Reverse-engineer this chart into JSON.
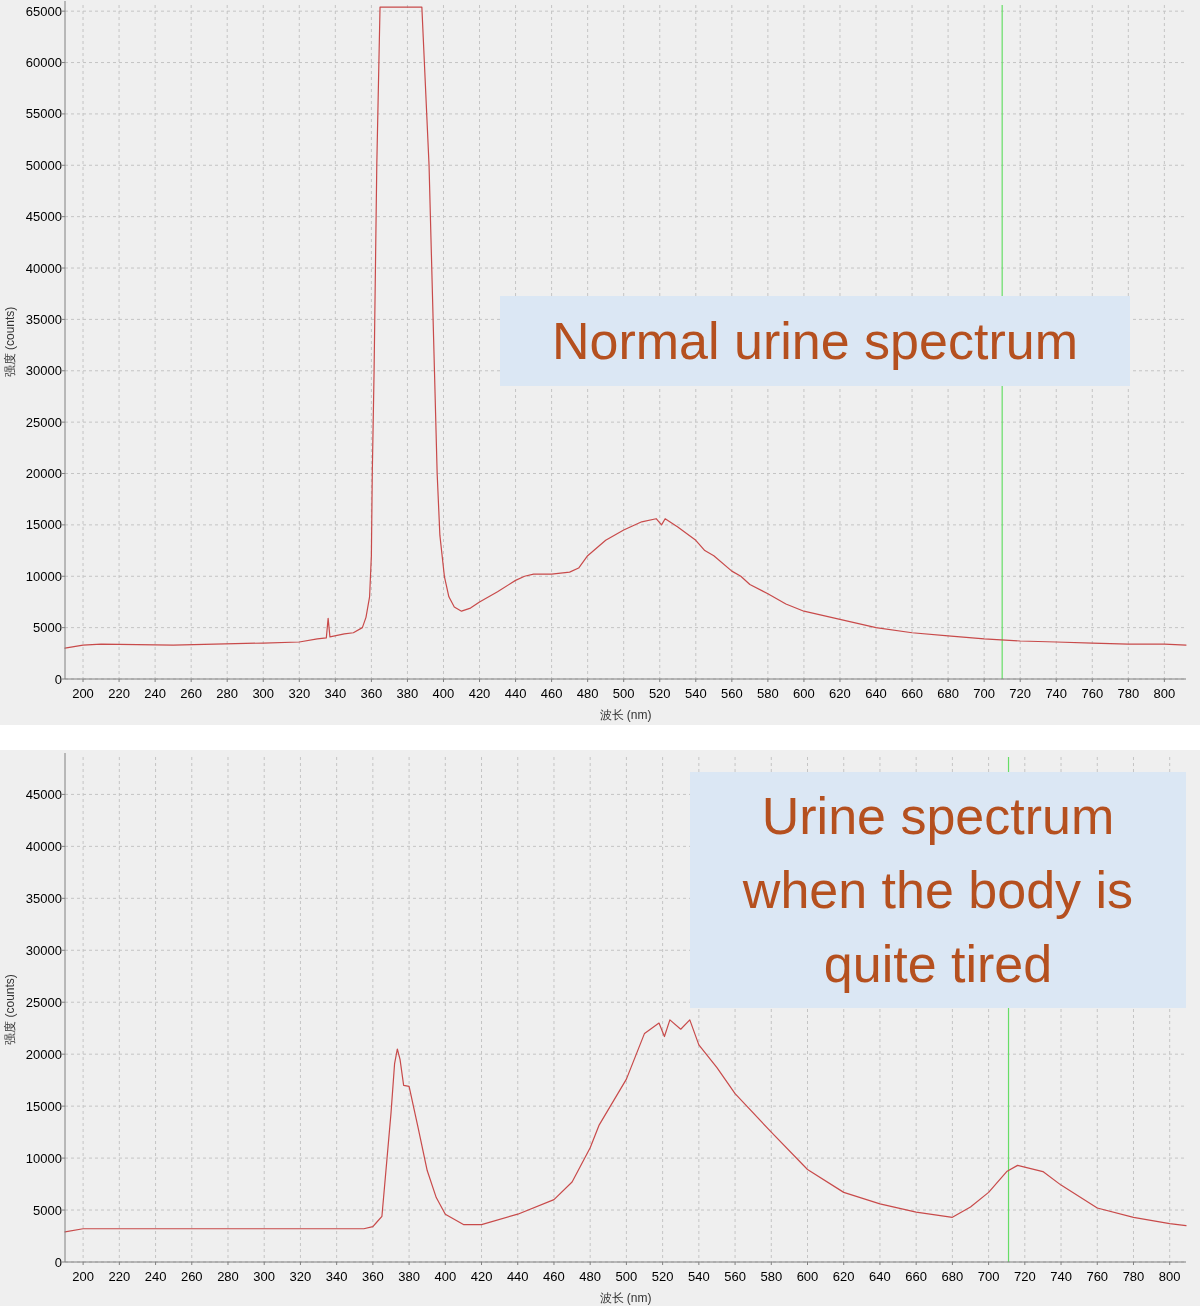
{
  "chart_data": [
    {
      "type": "line",
      "xlabel": "波长 (nm)",
      "ylabel": "强度 (counts)",
      "xlim": [
        190,
        812
      ],
      "ylim": [
        0,
        65600
      ],
      "xticks": [
        200,
        220,
        240,
        260,
        280,
        300,
        320,
        340,
        360,
        380,
        400,
        420,
        440,
        460,
        480,
        500,
        520,
        540,
        560,
        580,
        600,
        620,
        640,
        660,
        680,
        700,
        720,
        740,
        760,
        780,
        800
      ],
      "yticks": [
        0,
        5000,
        10000,
        15000,
        20000,
        25000,
        30000,
        35000,
        40000,
        45000,
        50000,
        55000,
        60000,
        65000
      ],
      "grid": true,
      "ref_lines": [
        {
          "axis": "x",
          "value": 710,
          "color": "#66dd66"
        }
      ],
      "annotations": [
        "Normal urine spectrum"
      ],
      "series": [
        {
          "color": "#c84a4a",
          "x": [
            190,
            200,
            210,
            250,
            300,
            320,
            330,
            335,
            336,
            337,
            345,
            350,
            355,
            357,
            359,
            360,
            360.5,
            361.5,
            363,
            364.8,
            388,
            392,
            395,
            396.5,
            398,
            400.5,
            403,
            406,
            410,
            415,
            420,
            430,
            440,
            445,
            450,
            460,
            470,
            475,
            480,
            490,
            500,
            510,
            518,
            521,
            523,
            530,
            540,
            545,
            550,
            560,
            565,
            570,
            580,
            590,
            600,
            620,
            640,
            660,
            680,
            700,
            720,
            740,
            760,
            780,
            800,
            812
          ],
          "values": [
            3000,
            3300,
            3400,
            3300,
            3500,
            3600,
            3900,
            4000,
            5900,
            4100,
            4400,
            4500,
            5000,
            6000,
            8000,
            12000,
            20000,
            30000,
            50000,
            65400,
            65400,
            50000,
            30000,
            20000,
            14000,
            10000,
            8000,
            7000,
            6600,
            6900,
            7500,
            8500,
            9600,
            10000,
            10200,
            10200,
            10400,
            10800,
            12000,
            13500,
            14500,
            15300,
            15600,
            15000,
            15600,
            14800,
            13500,
            12500,
            12000,
            10500,
            10000,
            9200,
            8300,
            7300,
            6600,
            5800,
            5000,
            4500,
            4200,
            3900,
            3700,
            3600,
            3500,
            3400,
            3400,
            3300
          ]
        }
      ]
    },
    {
      "type": "line",
      "xlabel": "波长 (nm)",
      "ylabel": "强度 (counts)",
      "xlim": [
        190,
        809
      ],
      "ylim": [
        0,
        48600
      ],
      "xticks": [
        200,
        220,
        240,
        260,
        280,
        300,
        320,
        340,
        360,
        380,
        400,
        420,
        440,
        460,
        480,
        500,
        520,
        540,
        560,
        580,
        600,
        620,
        640,
        660,
        680,
        700,
        720,
        740,
        760,
        780,
        800
      ],
      "yticks": [
        0,
        5000,
        10000,
        15000,
        20000,
        25000,
        30000,
        35000,
        40000,
        45000
      ],
      "grid": true,
      "ref_lines": [
        {
          "axis": "x",
          "value": 711,
          "color": "#66dd66"
        }
      ],
      "annotations": [
        "Urine spectrum when the body is quite tired"
      ],
      "series": [
        {
          "color": "#c84a4a",
          "x": [
            190,
            200,
            250,
            300,
            355,
            360,
            362,
            365,
            370,
            372,
            373.5,
            375,
            377,
            380,
            385,
            390,
            395,
            400,
            410,
            420,
            440,
            460,
            470,
            480,
            485,
            500,
            510,
            518,
            521,
            524,
            530,
            535,
            540,
            550,
            560,
            580,
            600,
            620,
            640,
            660,
            680,
            690,
            700,
            710,
            716,
            730,
            740,
            760,
            780,
            800,
            809
          ],
          "values": [
            2900,
            3200,
            3200,
            3200,
            3200,
            3400,
            3800,
            4400,
            14300,
            19100,
            20500,
            19500,
            17000,
            16900,
            12900,
            8800,
            6200,
            4600,
            3600,
            3600,
            4600,
            6000,
            7700,
            11000,
            13200,
            17600,
            22000,
            23000,
            21700,
            23300,
            22400,
            23300,
            20900,
            18700,
            16200,
            12500,
            8900,
            6700,
            5600,
            4800,
            4300,
            5300,
            6700,
            8700,
            9300,
            8700,
            7400,
            5200,
            4300,
            3700,
            3500
          ]
        }
      ]
    }
  ]
}
